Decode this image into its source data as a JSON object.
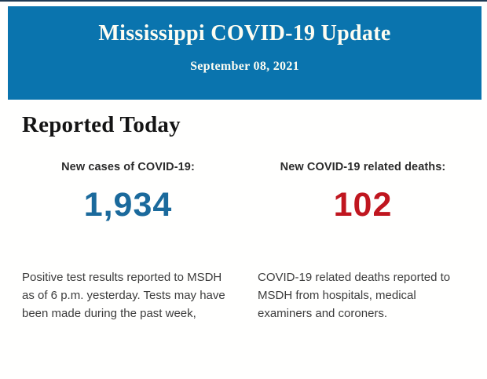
{
  "page": {
    "background": "#fffffe"
  },
  "banner": {
    "title": "Mississippi COVID-19 Update",
    "date": "September 08, 2021",
    "background_color": "#0a74ae",
    "text_color": "#fdfdf2",
    "top_line_color": "#1f3a54"
  },
  "main": {
    "heading": "Reported Today"
  },
  "stats": [
    {
      "label": "New cases of COVID-19:",
      "value": "1,934",
      "value_color": "#1b6a9c",
      "description": "Positive test results reported to MSDH as of 6 p.m. yesterday. Tests may have been made during the past week,"
    },
    {
      "label": "New COVID-19 related deaths:",
      "value": "102",
      "value_color": "#c0161f",
      "description": "COVID-19 related deaths reported to MSDH from hospitals, medical examiners and coroners."
    }
  ]
}
